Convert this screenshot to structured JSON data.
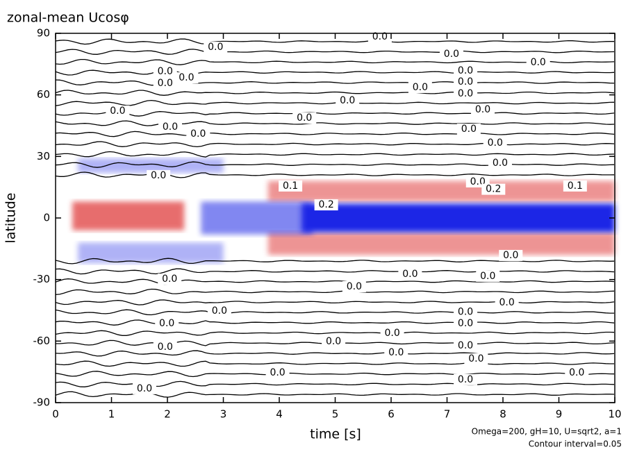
{
  "chart_data": {
    "type": "contour",
    "title": "zonal-mean Ucosφ",
    "x_label": "time [s]",
    "y_label": "latitude",
    "annotations": [
      "Omega=200, gH=10, U=sqrt2, a=1",
      "Contour interval=0.05"
    ],
    "xlim": [
      0,
      10
    ],
    "ylim": [
      -90,
      90
    ],
    "xticks": [
      0,
      1,
      2,
      3,
      4,
      5,
      6,
      7,
      8,
      9,
      10
    ],
    "yticks": [
      -90,
      -60,
      -30,
      0,
      30,
      60,
      90
    ],
    "colors": {
      "positive": "#e03c3c",
      "negative": "#1e28e6"
    },
    "shaded_regions": [
      {
        "x": [
          0.3,
          2.3
        ],
        "y": [
          -6,
          8
        ],
        "value": 0.25
      },
      {
        "x": [
          3.8,
          10
        ],
        "y": [
          8,
          18
        ],
        "value": 0.15
      },
      {
        "x": [
          3.8,
          10
        ],
        "y": [
          -18,
          -7
        ],
        "value": 0.15
      },
      {
        "x": [
          2.6,
          4.6
        ],
        "y": [
          -8,
          8
        ],
        "value": -0.15
      },
      {
        "x": [
          4.4,
          10
        ],
        "y": [
          -7,
          7
        ],
        "value": -0.4
      },
      {
        "x": [
          0.4,
          3.0
        ],
        "y": [
          -22,
          -12
        ],
        "value": -0.05
      },
      {
        "x": [
          0.4,
          3.0
        ],
        "y": [
          22,
          29
        ],
        "value": -0.05
      }
    ],
    "zero_contours": [
      86,
      81,
      76,
      71,
      66,
      61,
      56,
      51,
      46,
      41,
      36,
      31,
      26,
      21,
      -21,
      -26,
      -31,
      -36,
      -41,
      -46,
      -51,
      -56,
      -61,
      -66,
      -71,
      -76,
      -81,
      -86
    ],
    "contour_labels": [
      {
        "x": 5.8,
        "y": 88.3,
        "label": "0.0"
      },
      {
        "x": 2.86,
        "y": 83.2,
        "label": "0.0"
      },
      {
        "x": 7.08,
        "y": 79.9,
        "label": "0.0"
      },
      {
        "x": 8.63,
        "y": 75.8,
        "label": "0.0"
      },
      {
        "x": 7.33,
        "y": 71.7,
        "label": "0.0"
      },
      {
        "x": 1.96,
        "y": 71.4,
        "label": "0.0"
      },
      {
        "x": 2.34,
        "y": 68.3,
        "label": "0.0"
      },
      {
        "x": 1.96,
        "y": 65.6,
        "label": "0.0"
      },
      {
        "x": 6.52,
        "y": 63.6,
        "label": "0.0"
      },
      {
        "x": 7.33,
        "y": 66.3,
        "label": "0.0"
      },
      {
        "x": 7.33,
        "y": 60.6,
        "label": "0.0"
      },
      {
        "x": 5.22,
        "y": 57.2,
        "label": "0.0"
      },
      {
        "x": 1.11,
        "y": 52.1,
        "label": "0.0"
      },
      {
        "x": 7.64,
        "y": 52.8,
        "label": "0.0"
      },
      {
        "x": 4.45,
        "y": 48.7,
        "label": "0.0"
      },
      {
        "x": 2.05,
        "y": 44.3,
        "label": "0.0"
      },
      {
        "x": 2.55,
        "y": 40.9,
        "label": "0.0"
      },
      {
        "x": 7.39,
        "y": 43.3,
        "label": "0.0"
      },
      {
        "x": 7.86,
        "y": 36.6,
        "label": "0.0"
      },
      {
        "x": 7.95,
        "y": 26.7,
        "label": "0.0"
      },
      {
        "x": 1.84,
        "y": 20.6,
        "label": "0.0"
      },
      {
        "x": 7.55,
        "y": 17.6,
        "label": "0.0"
      },
      {
        "x": 4.2,
        "y": 15.6,
        "label": "0.1"
      },
      {
        "x": 7.83,
        "y": 14.0,
        "label": "0.2"
      },
      {
        "x": 9.29,
        "y": 15.6,
        "label": "0.1"
      },
      {
        "x": 4.84,
        "y": 6.4,
        "label": "0.2"
      },
      {
        "x": 8.14,
        "y": -18.3,
        "label": "0.0"
      },
      {
        "x": 6.34,
        "y": -27.4,
        "label": "0.0"
      },
      {
        "x": 7.73,
        "y": -28.4,
        "label": "0.0"
      },
      {
        "x": 2.04,
        "y": -29.8,
        "label": "0.0"
      },
      {
        "x": 5.34,
        "y": -33.5,
        "label": "0.0"
      },
      {
        "x": 8.07,
        "y": -41.3,
        "label": "0.0"
      },
      {
        "x": 2.93,
        "y": -45.3,
        "label": "0.0"
      },
      {
        "x": 7.33,
        "y": -45.9,
        "label": "0.0"
      },
      {
        "x": 7.33,
        "y": -51.4,
        "label": "0.0"
      },
      {
        "x": 1.99,
        "y": -51.4,
        "label": "0.0"
      },
      {
        "x": 4.97,
        "y": -60.2,
        "label": "0.0"
      },
      {
        "x": 6.02,
        "y": -56.1,
        "label": "0.0"
      },
      {
        "x": 7.33,
        "y": -62.2,
        "label": "0.0"
      },
      {
        "x": 1.96,
        "y": -62.9,
        "label": "0.0"
      },
      {
        "x": 6.09,
        "y": -65.6,
        "label": "0.0"
      },
      {
        "x": 7.52,
        "y": -68.7,
        "label": "0.0"
      },
      {
        "x": 3.97,
        "y": -75.4,
        "label": "0.0"
      },
      {
        "x": 9.32,
        "y": -75.4,
        "label": "0.0"
      },
      {
        "x": 7.33,
        "y": -78.8,
        "label": "0.0"
      },
      {
        "x": 1.59,
        "y": -83.2,
        "label": "0.0"
      }
    ]
  }
}
